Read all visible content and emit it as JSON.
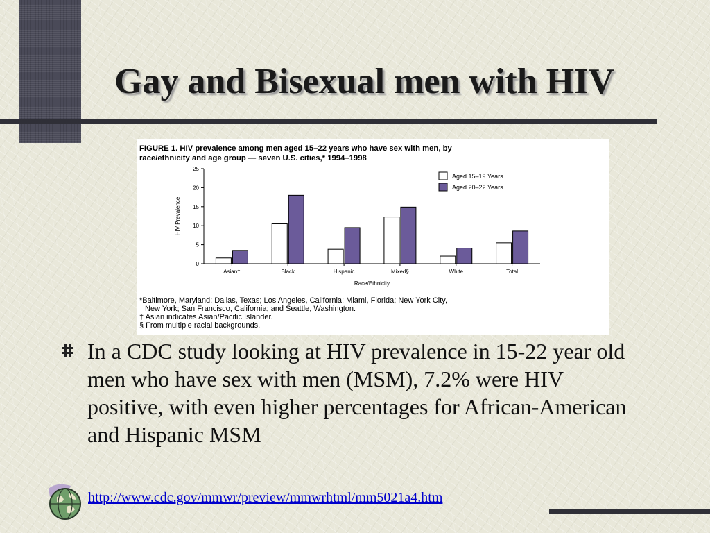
{
  "slide": {
    "title": "Gay and Bisexual men with HIV",
    "bullet": "In a CDC study looking at HIV prevalence in 15-22 year old men who have sex with men (MSM), 7.2% were HIV positive, with even higher percentages for African-American and Hispanic MSM",
    "link": "http://www.cdc.gov/mmwr/preview/mmwrhtml/mm5021a4.htm"
  },
  "figure": {
    "caption_line1": "FIGURE 1. HIV prevalence among men aged 15–22 years who have sex with men, by",
    "caption_line2": "race/ethnicity and age group — seven U.S. cities,* 1994–1998",
    "note1": "*Baltimore, Maryland; Dallas, Texas; Los Angeles, California; Miami, Florida; New York City,",
    "note2": "New York; San Francisco, California; and Seattle, Washington.",
    "note3": "† Asian indicates Asian/Pacific Islander.",
    "note4": "§ From multiple racial backgrounds."
  },
  "colors": {
    "series_1": "#ffffff",
    "series_2": "#6b5b9a",
    "link": "#0000cc"
  },
  "chart_data": {
    "type": "bar",
    "categories": [
      "Asian†",
      "Black",
      "Hispanic",
      "Mixed§",
      "White",
      "Total"
    ],
    "series": [
      {
        "name": "Aged 15–19 Years",
        "values": [
          1.5,
          10.5,
          3.8,
          12.3,
          2.0,
          5.5
        ]
      },
      {
        "name": "Aged 20–22 Years",
        "values": [
          3.5,
          18.0,
          9.5,
          14.9,
          4.1,
          8.6
        ]
      }
    ],
    "xlabel": "Race/Ethnicity",
    "ylabel": "HIV Prevalence",
    "ylim": [
      0,
      25
    ],
    "yticks": [
      0,
      5,
      10,
      15,
      20,
      25
    ],
    "legend": "top-right",
    "grid": false
  }
}
